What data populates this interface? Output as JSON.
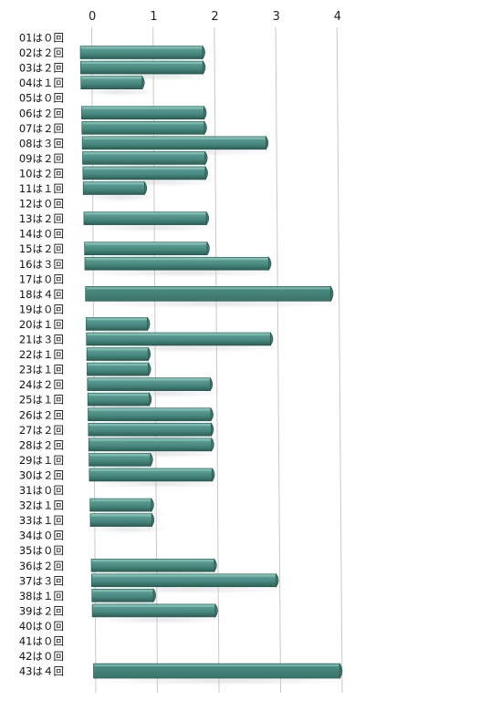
{
  "chart_data": {
    "type": "bar",
    "orientation": "horizontal",
    "style": "3d-perspective",
    "categories": [
      "01は０回",
      "02は２回",
      "03は２回",
      "04は１回",
      "05は０回",
      "06は２回",
      "07は２回",
      "08は３回",
      "09は２回",
      "10は２回",
      "11は１回",
      "12は０回",
      "13は２回",
      "14は０回",
      "15は２回",
      "16は３回",
      "17は０回",
      "18は４回",
      "19は０回",
      "20は１回",
      "21は３回",
      "22は１回",
      "23は１回",
      "24は２回",
      "25は１回",
      "26は２回",
      "27は２回",
      "28は２回",
      "29は１回",
      "30は２回",
      "31は０回",
      "32は１回",
      "33は１回",
      "34は０回",
      "35は０回",
      "36は２回",
      "37は３回",
      "38は１回",
      "39は２回",
      "40は０回",
      "41は０回",
      "42は０回",
      "43は４回"
    ],
    "values": [
      0,
      2,
      2,
      1,
      0,
      2,
      2,
      3,
      2,
      2,
      1,
      0,
      2,
      0,
      2,
      3,
      0,
      4,
      0,
      1,
      3,
      1,
      1,
      2,
      1,
      2,
      2,
      2,
      1,
      2,
      0,
      1,
      1,
      0,
      0,
      2,
      3,
      1,
      2,
      0,
      0,
      0,
      4
    ],
    "xticks": [
      0,
      1,
      2,
      3,
      4
    ],
    "xlim": [
      0,
      4
    ],
    "grid": true,
    "legend": "none",
    "title": "",
    "xlabel": "",
    "ylabel": "",
    "colors": {
      "bar_face": "#4a8a80",
      "bar_top": "#7fbfb5",
      "bar_dark": "#24524b",
      "grid": "#c8c8c8"
    }
  }
}
